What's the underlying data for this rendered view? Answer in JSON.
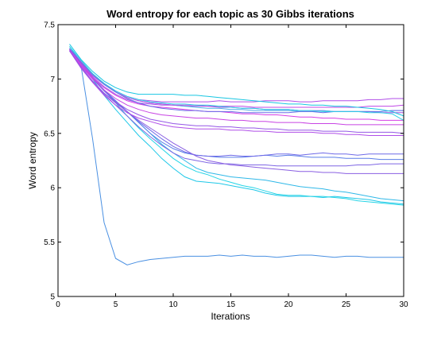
{
  "chart_data": {
    "type": "line",
    "title": "Word entropy for each topic as 30 Gibbs iterations",
    "xlabel": "Iterations",
    "ylabel": "Word entropy",
    "xlim": [
      0,
      30
    ],
    "ylim": [
      5,
      7.5
    ],
    "xticks": [
      0,
      5,
      10,
      15,
      20,
      25,
      30
    ],
    "yticks": [
      5,
      5.5,
      6,
      6.5,
      7,
      7.5
    ],
    "xtick_labels": [
      "0",
      "5",
      "10",
      "15",
      "20",
      "25",
      "30"
    ],
    "ytick_labels": [
      "5",
      "5.5",
      "6",
      "6.5",
      "7",
      "7.5"
    ],
    "grid": false,
    "legend": false,
    "x": [
      1,
      2,
      3,
      4,
      5,
      6,
      7,
      8,
      9,
      10,
      11,
      12,
      13,
      14,
      15,
      16,
      17,
      18,
      19,
      20,
      21,
      22,
      23,
      24,
      25,
      26,
      27,
      28,
      29,
      30
    ],
    "series": [
      {
        "color": "#4a90e2",
        "values": [
          7.28,
          7.12,
          6.45,
          5.68,
          5.35,
          5.29,
          5.32,
          5.34,
          5.35,
          5.36,
          5.37,
          5.37,
          5.37,
          5.38,
          5.37,
          5.38,
          5.37,
          5.37,
          5.36,
          5.37,
          5.38,
          5.38,
          5.37,
          5.36,
          5.37,
          5.37,
          5.36,
          5.36,
          5.36,
          5.36
        ]
      },
      {
        "color": "#1fc8e8",
        "values": [
          7.3,
          7.15,
          7.0,
          6.85,
          6.72,
          6.6,
          6.48,
          6.38,
          6.27,
          6.18,
          6.1,
          6.06,
          6.05,
          6.04,
          6.02,
          6.0,
          5.98,
          5.95,
          5.93,
          5.92,
          5.92,
          5.92,
          5.91,
          5.92,
          5.91,
          5.9,
          5.89,
          5.87,
          5.86,
          5.85
        ]
      },
      {
        "color": "#24d4e6",
        "values": [
          7.28,
          7.14,
          7.02,
          6.9,
          6.78,
          6.66,
          6.55,
          6.45,
          6.36,
          6.27,
          6.2,
          6.15,
          6.12,
          6.08,
          6.05,
          6.02,
          6.0,
          5.97,
          5.94,
          5.93,
          5.93,
          5.92,
          5.92,
          5.91,
          5.9,
          5.88,
          5.87,
          5.86,
          5.85,
          5.84
        ]
      },
      {
        "color": "#2fb8e8",
        "values": [
          7.27,
          7.13,
          7.01,
          6.9,
          6.8,
          6.7,
          6.6,
          6.5,
          6.4,
          6.32,
          6.25,
          6.18,
          6.14,
          6.12,
          6.1,
          6.09,
          6.08,
          6.07,
          6.05,
          6.03,
          6.01,
          6.0,
          5.99,
          5.97,
          5.96,
          5.94,
          5.92,
          5.9,
          5.89,
          5.88
        ]
      },
      {
        "color": "#5b7ee8",
        "values": [
          7.27,
          7.13,
          7.01,
          6.9,
          6.8,
          6.7,
          6.6,
          6.5,
          6.42,
          6.36,
          6.32,
          6.3,
          6.29,
          6.28,
          6.28,
          6.28,
          6.29,
          6.3,
          6.29,
          6.3,
          6.29,
          6.28,
          6.28,
          6.28,
          6.27,
          6.27,
          6.27,
          6.26,
          6.26,
          6.26
        ]
      },
      {
        "color": "#6f6ae8",
        "values": [
          7.26,
          7.12,
          7.0,
          6.89,
          6.79,
          6.7,
          6.61,
          6.53,
          6.45,
          6.38,
          6.33,
          6.3,
          6.29,
          6.29,
          6.3,
          6.29,
          6.29,
          6.3,
          6.31,
          6.31,
          6.3,
          6.31,
          6.32,
          6.31,
          6.31,
          6.3,
          6.31,
          6.31,
          6.31,
          6.31
        ]
      },
      {
        "color": "#7e66e4",
        "values": [
          7.26,
          7.1,
          6.97,
          6.86,
          6.76,
          6.66,
          6.56,
          6.47,
          6.39,
          6.32,
          6.27,
          6.25,
          6.23,
          6.22,
          6.22,
          6.21,
          6.21,
          6.21,
          6.2,
          6.2,
          6.2,
          6.2,
          6.2,
          6.2,
          6.2,
          6.21,
          6.21,
          6.22,
          6.22,
          6.22
        ]
      },
      {
        "color": "#8a5fe2",
        "values": [
          7.26,
          7.11,
          6.98,
          6.87,
          6.78,
          6.7,
          6.62,
          6.55,
          6.48,
          6.41,
          6.35,
          6.29,
          6.25,
          6.23,
          6.21,
          6.2,
          6.19,
          6.18,
          6.17,
          6.16,
          6.15,
          6.15,
          6.14,
          6.14,
          6.13,
          6.13,
          6.13,
          6.13,
          6.13,
          6.13
        ]
      },
      {
        "color": "#b04ee8",
        "values": [
          7.26,
          7.1,
          6.97,
          6.85,
          6.76,
          6.69,
          6.64,
          6.61,
          6.58,
          6.56,
          6.55,
          6.54,
          6.54,
          6.54,
          6.53,
          6.53,
          6.52,
          6.52,
          6.51,
          6.51,
          6.51,
          6.51,
          6.5,
          6.5,
          6.49,
          6.49,
          6.48,
          6.48,
          6.48,
          6.48
        ]
      },
      {
        "color": "#9556e6",
        "values": [
          7.26,
          7.11,
          6.98,
          6.87,
          6.79,
          6.72,
          6.67,
          6.63,
          6.61,
          6.59,
          6.58,
          6.57,
          6.57,
          6.56,
          6.56,
          6.55,
          6.55,
          6.54,
          6.54,
          6.53,
          6.53,
          6.53,
          6.52,
          6.52,
          6.52,
          6.51,
          6.51,
          6.51,
          6.51,
          6.5
        ]
      },
      {
        "color": "#c843e4",
        "values": [
          7.27,
          7.12,
          7.0,
          6.9,
          6.82,
          6.76,
          6.72,
          6.69,
          6.67,
          6.66,
          6.65,
          6.64,
          6.64,
          6.63,
          6.62,
          6.62,
          6.61,
          6.61,
          6.6,
          6.6,
          6.6,
          6.59,
          6.59,
          6.59,
          6.58,
          6.58,
          6.58,
          6.58,
          6.58,
          6.58
        ]
      },
      {
        "color": "#d63ee6",
        "values": [
          7.27,
          7.13,
          7.01,
          6.92,
          6.85,
          6.8,
          6.77,
          6.75,
          6.74,
          6.73,
          6.72,
          6.71,
          6.7,
          6.7,
          6.69,
          6.68,
          6.68,
          6.67,
          6.67,
          6.66,
          6.65,
          6.65,
          6.64,
          6.64,
          6.63,
          6.63,
          6.63,
          6.62,
          6.62,
          6.62
        ]
      },
      {
        "color": "#a852e6",
        "values": [
          7.27,
          7.14,
          7.02,
          6.93,
          6.86,
          6.81,
          6.78,
          6.77,
          6.76,
          6.76,
          6.75,
          6.75,
          6.75,
          6.74,
          6.74,
          6.73,
          6.73,
          6.72,
          6.72,
          6.72,
          6.71,
          6.71,
          6.71,
          6.7,
          6.7,
          6.7,
          6.7,
          6.69,
          6.69,
          6.69
        ]
      },
      {
        "color": "#4fb0e6",
        "values": [
          7.28,
          7.15,
          7.04,
          6.95,
          6.88,
          6.83,
          6.8,
          6.78,
          6.77,
          6.76,
          6.75,
          6.74,
          6.73,
          6.73,
          6.72,
          6.72,
          6.71,
          6.71,
          6.71,
          6.71,
          6.7,
          6.7,
          6.71,
          6.7,
          6.7,
          6.7,
          6.7,
          6.7,
          6.71,
          6.71
        ]
      },
      {
        "color": "#b04ee8",
        "values": [
          7.28,
          7.16,
          7.05,
          6.96,
          6.89,
          6.84,
          6.81,
          6.8,
          6.79,
          6.79,
          6.79,
          6.79,
          6.79,
          6.8,
          6.79,
          6.79,
          6.79,
          6.8,
          6.8,
          6.8,
          6.79,
          6.79,
          6.8,
          6.8,
          6.8,
          6.8,
          6.81,
          6.81,
          6.82,
          6.82
        ]
      },
      {
        "color": "#c048e6",
        "values": [
          7.27,
          7.14,
          7.03,
          6.95,
          6.88,
          6.83,
          6.8,
          6.78,
          6.77,
          6.76,
          6.76,
          6.76,
          6.75,
          6.75,
          6.75,
          6.75,
          6.74,
          6.74,
          6.74,
          6.74,
          6.74,
          6.74,
          6.74,
          6.74,
          6.74,
          6.74,
          6.75,
          6.75,
          6.75,
          6.76
        ]
      },
      {
        "color": "#6a6ee8",
        "values": [
          7.28,
          7.15,
          7.04,
          6.95,
          6.88,
          6.82,
          6.78,
          6.75,
          6.73,
          6.72,
          6.71,
          6.71,
          6.7,
          6.7,
          6.7,
          6.69,
          6.69,
          6.69,
          6.69,
          6.69,
          6.7,
          6.7,
          6.69,
          6.7,
          6.7,
          6.7,
          6.7,
          6.7,
          6.71,
          6.71
        ]
      },
      {
        "color": "#18c6e2",
        "values": [
          7.32,
          7.18,
          7.07,
          6.98,
          6.92,
          6.88,
          6.86,
          6.86,
          6.86,
          6.86,
          6.85,
          6.85,
          6.84,
          6.83,
          6.82,
          6.81,
          6.8,
          6.79,
          6.78,
          6.77,
          6.77,
          6.76,
          6.76,
          6.75,
          6.75,
          6.74,
          6.73,
          6.72,
          6.7,
          6.66
        ]
      },
      {
        "color": "#2ad0e6",
        "values": [
          7.3,
          7.17,
          7.05,
          6.96,
          6.89,
          6.84,
          6.81,
          6.79,
          6.78,
          6.77,
          6.77,
          6.76,
          6.76,
          6.75,
          6.74,
          6.73,
          6.73,
          6.72,
          6.72,
          6.72,
          6.71,
          6.71,
          6.7,
          6.7,
          6.7,
          6.7,
          6.69,
          6.69,
          6.68,
          6.62
        ]
      }
    ]
  }
}
